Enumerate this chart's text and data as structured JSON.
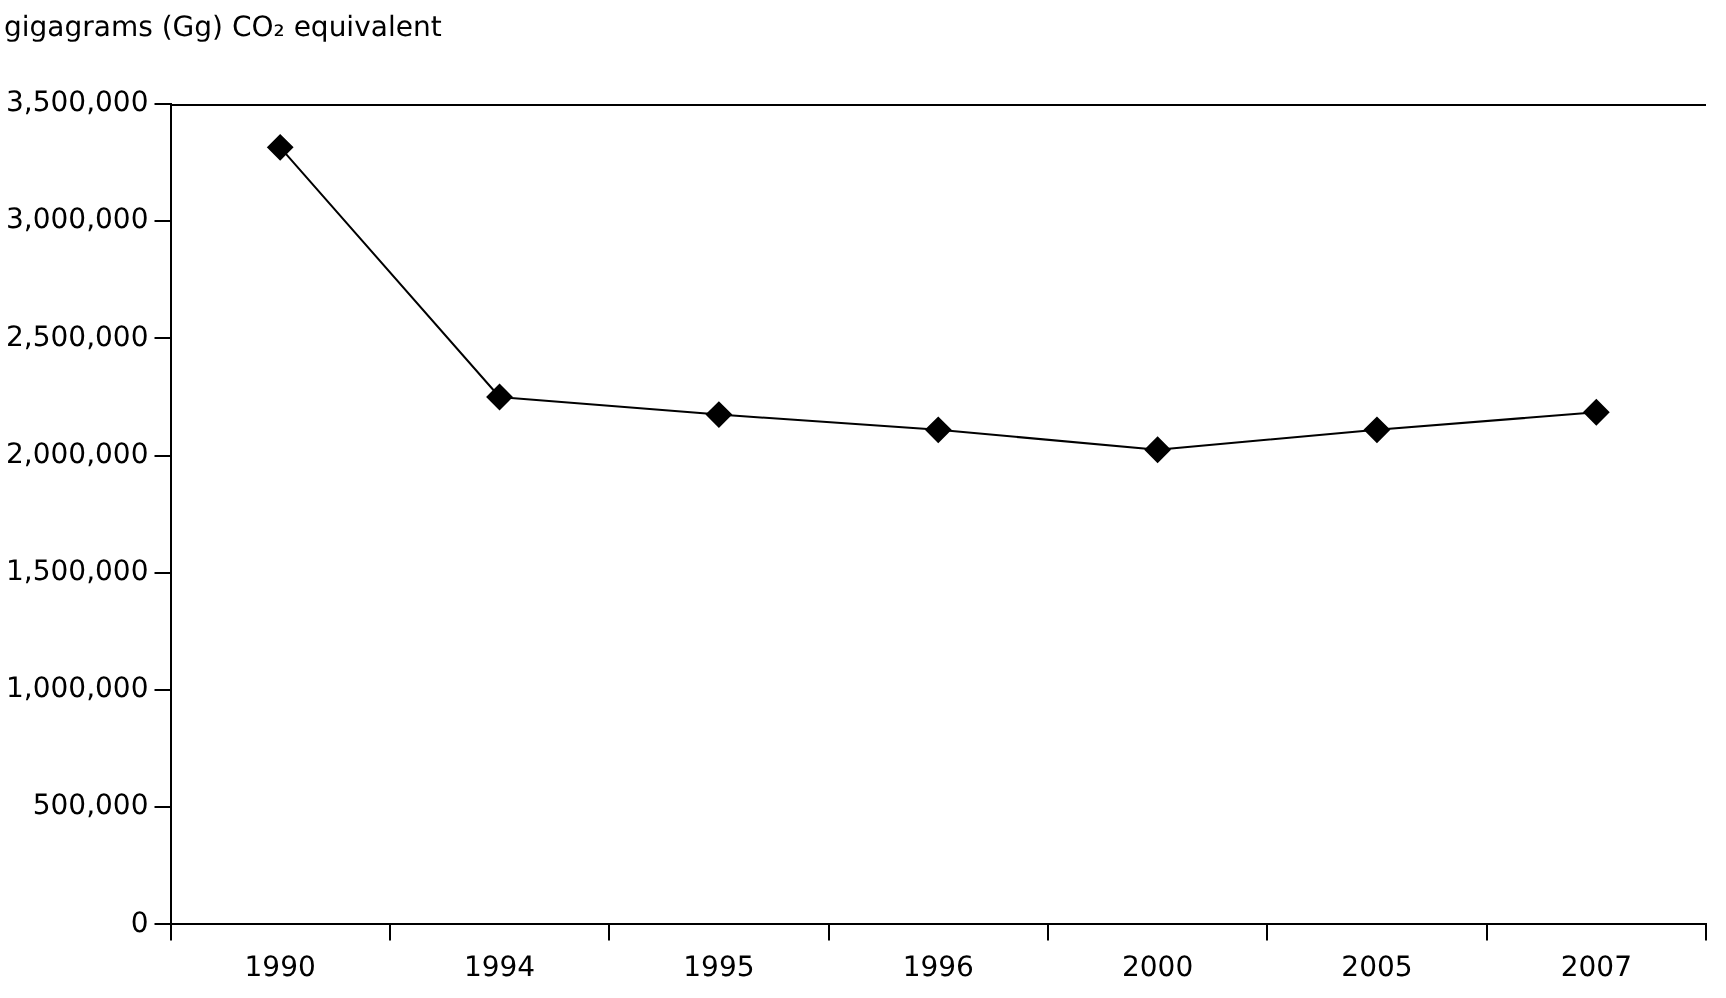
{
  "chart_data": {
    "type": "line",
    "ylabel": "gigagrams (Gg) CO₂ equivalent",
    "categories": [
      "1990",
      "1994",
      "1995",
      "1996",
      "2000",
      "2005",
      "2007"
    ],
    "series": [
      {
        "color": "#000000",
        "values": [
          3315000,
          2250000,
          2175000,
          2110000,
          2025000,
          2110000,
          2185000
        ]
      }
    ],
    "ylim": [
      0,
      3500000
    ],
    "yticks": [
      {
        "value": 0,
        "label": "0"
      },
      {
        "value": 500000,
        "label": "500,000"
      },
      {
        "value": 1000000,
        "label": "1,000,000"
      },
      {
        "value": 1500000,
        "label": "1,500,000"
      },
      {
        "value": 2000000,
        "label": "2,000,000"
      },
      {
        "value": 2500000,
        "label": "2,500,000"
      },
      {
        "value": 3000000,
        "label": "3,000,000"
      },
      {
        "value": 3500000,
        "label": "3,500,000"
      }
    ],
    "grid": false,
    "legend": false,
    "marker": "diamond",
    "line_style": "solid"
  }
}
